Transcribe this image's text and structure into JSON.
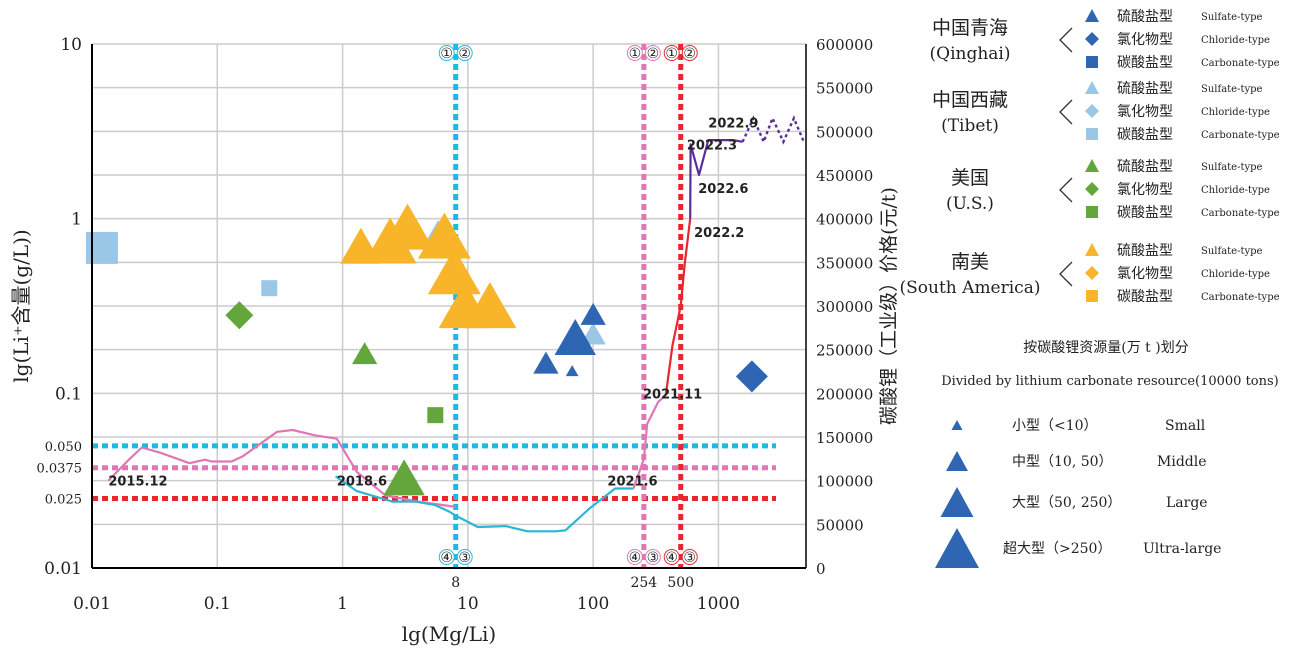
{
  "chart_data": {
    "type": "scatter",
    "xlabel": "lg(Mg/Li)",
    "ylabel": "lg(Li⁺含量(g/L))",
    "y2label": "碳酸锂（工业级）价格(元/t)",
    "x_ticks": [
      "0.01",
      "0.1",
      "1",
      "10",
      "100",
      "1000"
    ],
    "y_ticks": [
      "0.01",
      "0.1",
      "1",
      "10"
    ],
    "y_extra_ticks": [
      {
        "value": 0.05,
        "label": "0.050"
      },
      {
        "value": 0.0375,
        "label": "0.0375"
      },
      {
        "value": 0.025,
        "label": "0.025"
      }
    ],
    "y2_ticks": [
      "0",
      "50000",
      "100000",
      "150000",
      "200000",
      "250000",
      "300000",
      "350000",
      "400000",
      "450000",
      "500000",
      "550000",
      "600000"
    ],
    "x_extra_labels": [
      {
        "value": 8,
        "label": "8"
      },
      {
        "value": 254,
        "label": "254"
      },
      {
        "value": 500,
        "label": "500"
      }
    ],
    "xlim": [
      0.01,
      5000
    ],
    "ylim": [
      0.01,
      10
    ],
    "y2lim": [
      0,
      600000
    ],
    "xscale": "log",
    "yscale": "log",
    "grid": true,
    "threshold_lines": [
      {
        "orientation": "h",
        "value": 0.05,
        "color": "#1fb8e0"
      },
      {
        "orientation": "h",
        "value": 0.0375,
        "color": "#e077b4"
      },
      {
        "orientation": "h",
        "value": 0.025,
        "color": "#e8262b"
      },
      {
        "orientation": "v",
        "value": 8,
        "color": "#1fb8e0",
        "top": [
          "①",
          "②"
        ],
        "bottom": [
          "④",
          "③"
        ]
      },
      {
        "orientation": "v",
        "value": 254,
        "color": "#e077b4",
        "top": [
          "①",
          "②"
        ],
        "bottom": [
          "④",
          "③"
        ]
      },
      {
        "orientation": "v",
        "value": 500,
        "color": "#e8262b",
        "top": [
          "①",
          "②"
        ],
        "bottom": [
          "④",
          "③"
        ]
      }
    ],
    "points": [
      {
        "x": 0.012,
        "y": 0.68,
        "region": "tibet",
        "shape": "square",
        "size": 3
      },
      {
        "x": 0.26,
        "y": 0.4,
        "region": "tibet",
        "shape": "square",
        "size": 1
      },
      {
        "x": 5.8,
        "y": 0.85,
        "region": "tibet",
        "shape": "triangle",
        "size": 1
      },
      {
        "x": 100,
        "y": 0.22,
        "region": "tibet",
        "shape": "triangle",
        "size": 1
      },
      {
        "x": 0.15,
        "y": 0.28,
        "region": "us",
        "shape": "diamond",
        "size": 1
      },
      {
        "x": 1.5,
        "y": 0.17,
        "region": "us",
        "shape": "triangle",
        "size": 1
      },
      {
        "x": 5.5,
        "y": 0.075,
        "region": "us",
        "shape": "square",
        "size": 1
      },
      {
        "x": 3.1,
        "y": 0.033,
        "region": "us",
        "shape": "triangle",
        "size": 2
      },
      {
        "x": 1.4,
        "y": 0.7,
        "region": "sa",
        "shape": "triangle",
        "size": 2
      },
      {
        "x": 2.4,
        "y": 0.75,
        "region": "sa",
        "shape": "triangle",
        "size": 3
      },
      {
        "x": 3.3,
        "y": 0.9,
        "region": "sa",
        "shape": "triangle",
        "size": 3
      },
      {
        "x": 6.5,
        "y": 0.8,
        "region": "sa",
        "shape": "triangle",
        "size": 3
      },
      {
        "x": 7.8,
        "y": 0.5,
        "region": "sa",
        "shape": "triangle",
        "size": 3
      },
      {
        "x": 9.5,
        "y": 0.32,
        "region": "sa",
        "shape": "triangle",
        "size": 3
      },
      {
        "x": 15,
        "y": 0.32,
        "region": "sa",
        "shape": "triangle",
        "size": 3
      },
      {
        "x": 42,
        "y": 0.15,
        "region": "qinghai",
        "shape": "triangle",
        "size": 1
      },
      {
        "x": 72,
        "y": 0.21,
        "region": "qinghai",
        "shape": "triangle",
        "size": 2
      },
      {
        "x": 68,
        "y": 0.135,
        "region": "qinghai",
        "shape": "triangle",
        "size": 0
      },
      {
        "x": 100,
        "y": 0.285,
        "region": "qinghai",
        "shape": "triangle",
        "size": 1
      },
      {
        "x": 1850,
        "y": 0.125,
        "region": "qinghai",
        "shape": "diamond",
        "size": 2
      }
    ],
    "price_series": [
      {
        "name": "pink",
        "color": "#e077b4",
        "x": [
          0.0135,
          0.02,
          0.025,
          0.035,
          0.06,
          0.08,
          0.09,
          0.13,
          0.16,
          0.3,
          0.4,
          0.6,
          0.9,
          1.3,
          2.2,
          4,
          8
        ],
        "y": [
          100000,
          125000,
          138000,
          132000,
          120000,
          124000,
          122000,
          122000,
          128000,
          156000,
          158000,
          152000,
          148000,
          110000,
          83000,
          76000,
          70000
        ]
      },
      {
        "name": "cyan",
        "color": "#2ab6d6",
        "x": [
          0.88,
          1.3,
          2.5,
          3.8,
          5.5,
          7,
          8,
          12,
          20,
          30,
          50,
          60,
          95,
          150,
          210
        ],
        "y": [
          105000,
          88000,
          76000,
          76000,
          72000,
          65000,
          60000,
          47000,
          48000,
          42000,
          42000,
          43000,
          69000,
          91000,
          91000
        ]
      },
      {
        "name": "pink_late",
        "color": "#e077b4",
        "x": [
          210,
          254,
          270,
          330,
          380
        ],
        "y": [
          91000,
          125000,
          165000,
          190000,
          198000
        ]
      },
      {
        "name": "red",
        "color": "#e8262b",
        "x": [
          380,
          430,
          500,
          540,
          595
        ],
        "y": [
          198000,
          255000,
          300000,
          350000,
          400000
        ]
      },
      {
        "name": "purple",
        "color": "#5a2d9b",
        "x": [
          595,
          600,
          700,
          830,
          1300,
          1560
        ],
        "y": [
          400000,
          485000,
          450000,
          490000,
          490000,
          488000
        ],
        "dotted_tail_x": [
          1560,
          1900,
          2300,
          2700,
          3300,
          4000,
          4800
        ],
        "dotted_tail_y": [
          488000,
          515000,
          488000,
          515000,
          488000,
          515000,
          488000
        ]
      }
    ],
    "annotations": [
      {
        "text": "2015.12",
        "x": 0.0135,
        "y2": 100000,
        "color": "#e077b4"
      },
      {
        "text": "2018.6",
        "x": 0.9,
        "y2": 100000,
        "color": "#e077b4"
      },
      {
        "text": "2021.6",
        "x": 130,
        "y2": 100000,
        "color": "#2ab6d6"
      },
      {
        "text": "2021.11",
        "x": 250,
        "y2": 200000,
        "color": "#e077b4"
      },
      {
        "text": "2022.2",
        "x": 640,
        "y2": 385000,
        "color": "#e8262b"
      },
      {
        "text": "2022.3",
        "x": 560,
        "y2": 485000,
        "color": "#5a2d9b"
      },
      {
        "text": "2022.6",
        "x": 690,
        "y2": 435000,
        "color": "#5a2d9b"
      },
      {
        "text": "2022.9",
        "x": 830,
        "y2": 510000,
        "color": "#5a2d9b"
      }
    ]
  },
  "legend": {
    "groups": [
      {
        "name_cn": "中国青海",
        "name_en": "(Qinghai)",
        "color": "#2f66b3",
        "items": [
          {
            "shape": "triangle",
            "cn": "硫酸盐型",
            "en": "Sulfate-type"
          },
          {
            "shape": "diamond",
            "cn": "氯化物型",
            "en": "Chloride-type"
          },
          {
            "shape": "square",
            "cn": "碳酸盐型",
            "en": "Carbonate-type"
          }
        ]
      },
      {
        "name_cn": "中国西藏",
        "name_en": "(Tibet)",
        "color": "#9bc7e6",
        "items": [
          {
            "shape": "triangle",
            "cn": "硫酸盐型",
            "en": "Sulfate-type"
          },
          {
            "shape": "diamond",
            "cn": "氯化物型",
            "en": "Chloride-type"
          },
          {
            "shape": "square",
            "cn": "碳酸盐型",
            "en": "Carbonate-type"
          }
        ]
      },
      {
        "name_cn": "美国",
        "name_en": "(U.S.)",
        "color": "#63a63b",
        "items": [
          {
            "shape": "triangle",
            "cn": "硫酸盐型",
            "en": "Sulfate-type"
          },
          {
            "shape": "diamond",
            "cn": "氯化物型",
            "en": "Chloride-type"
          },
          {
            "shape": "square",
            "cn": "碳酸盐型",
            "en": "Carbonate-type"
          }
        ]
      },
      {
        "name_cn": "南美",
        "name_en": "(South America)",
        "color": "#f9b52a",
        "items": [
          {
            "shape": "triangle",
            "cn": "硫酸盐型",
            "en": "Sulfate-type"
          },
          {
            "shape": "diamond",
            "cn": "氯化物型",
            "en": "Chloride-type"
          },
          {
            "shape": "square",
            "cn": "碳酸盐型",
            "en": "Carbonate-type"
          }
        ]
      }
    ],
    "size_title_cn": "按碳酸锂资源量(万 t )划分",
    "size_title_en": "Divided by lithium carbonate resource(10000 tons)",
    "sizes": [
      {
        "cn": "小型（<10）",
        "en": "Small"
      },
      {
        "cn": "中型（10, 50）",
        "en": "Middle"
      },
      {
        "cn": "大型（50, 250）",
        "en": "Large"
      },
      {
        "cn": "超大型（>250）",
        "en": "Ultra-large"
      }
    ],
    "size_color": "#2f66b3"
  },
  "colors": {
    "qinghai": "#2f66b3",
    "tibet": "#9bc7e6",
    "us": "#63a63b",
    "sa": "#f9b52a",
    "grid": "#cccccc"
  }
}
